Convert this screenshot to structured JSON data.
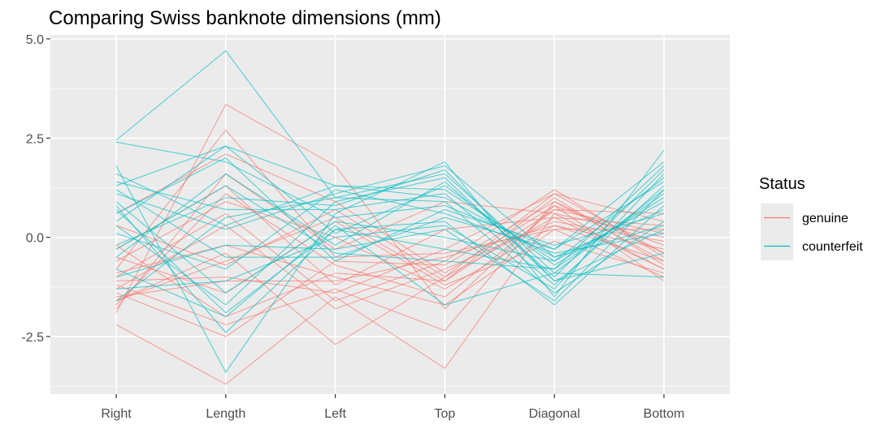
{
  "chart_data": {
    "type": "line",
    "subtype": "parallel-coordinates",
    "title": "Comparing Swiss banknote dimensions (mm)",
    "xlabel": "",
    "ylabel": "",
    "categories": [
      "Right",
      "Length",
      "Left",
      "Top",
      "Diagonal",
      "Bottom"
    ],
    "y_ticks": [
      -2.5,
      0.0,
      2.5,
      5.0
    ],
    "y_tick_labels": [
      "-2.5",
      "0.0",
      "2.5",
      "5.0"
    ],
    "ylim": [
      -3.95,
      5.1
    ],
    "grid": true,
    "legend": {
      "title": "Status",
      "position": "right"
    },
    "colors": {
      "panel_bg": "#ebebeb",
      "grid": "#ffffff",
      "genuine": "#F8766D",
      "counterfeit": "#00BFC4"
    },
    "series": [
      {
        "name": "genuine",
        "color": "#F8766D",
        "lines": [
          [
            -2.2,
            -3.7,
            -1.5,
            -3.3,
            0.6,
            -0.8
          ],
          [
            -1.9,
            3.35,
            1.8,
            -1.8,
            0.8,
            -1.1
          ],
          [
            -1.6,
            -0.4,
            -2.7,
            -1.0,
            1.1,
            -0.4
          ],
          [
            -1.2,
            -2.2,
            -1.3,
            -2.35,
            0.9,
            -0.6
          ],
          [
            -0.8,
            2.7,
            -0.5,
            -0.4,
            0.2,
            0.2
          ],
          [
            -1.5,
            -1.1,
            -1.1,
            -0.5,
            0.3,
            -0.3
          ],
          [
            0.3,
            -0.7,
            0.7,
            -1.0,
            0.5,
            0.3
          ],
          [
            -1.0,
            0.6,
            -1.6,
            -0.6,
            1.2,
            -0.5
          ],
          [
            -1.7,
            1.1,
            -0.7,
            -1.5,
            0.7,
            0.6
          ],
          [
            -0.5,
            -1.4,
            0.4,
            -1.2,
            -0.1,
            -0.9
          ],
          [
            -1.3,
            0.3,
            -1.8,
            -0.8,
            0.4,
            -0.1
          ],
          [
            -0.2,
            -2.0,
            -0.9,
            -1.1,
            1.0,
            -0.7
          ],
          [
            -1.8,
            1.6,
            -0.3,
            0.9,
            0.6,
            0.0
          ],
          [
            -0.9,
            -0.2,
            -1.0,
            -1.7,
            0.2,
            -1.0
          ],
          [
            0.6,
            2.1,
            0.9,
            -0.9,
            0.8,
            -0.2
          ],
          [
            -1.1,
            -1.0,
            -1.4,
            -0.3,
            1.1,
            0.4
          ],
          [
            -0.6,
            0.9,
            0.0,
            -1.3,
            0.3,
            -0.6
          ],
          [
            -1.4,
            -2.5,
            -0.6,
            -0.7,
            0.9,
            -0.4
          ],
          [
            -0.3,
            1.3,
            -1.2,
            0.2,
            0.5,
            -0.8
          ],
          [
            -1.6,
            -0.6,
            0.5,
            -1.1,
            0.7,
            0.1
          ]
        ]
      },
      {
        "name": "counterfeit",
        "color": "#00BFC4",
        "lines": [
          [
            2.45,
            4.7,
            1.0,
            1.6,
            -0.9,
            1.2
          ],
          [
            1.8,
            -3.4,
            0.6,
            1.9,
            -1.5,
            2.2
          ],
          [
            1.3,
            2.3,
            1.3,
            1.2,
            -0.6,
            1.5
          ],
          [
            0.8,
            -2.4,
            0.2,
            0.4,
            -1.7,
            0.8
          ],
          [
            2.4,
            1.9,
            0.5,
            0.8,
            -0.3,
            1.9
          ],
          [
            0.3,
            -1.7,
            0.9,
            1.5,
            -1.1,
            -0.4
          ],
          [
            -0.3,
            1.3,
            -0.4,
            -0.6,
            -0.8,
            1.1
          ],
          [
            1.1,
            0.2,
            1.1,
            1.8,
            -0.5,
            0.3
          ],
          [
            -1.3,
            -1.1,
            0.0,
            0.3,
            -1.3,
            1.6
          ],
          [
            0.6,
            2.0,
            -0.6,
            0.7,
            -0.2,
            0.6
          ],
          [
            -0.8,
            -2.0,
            0.3,
            -1.7,
            -0.9,
            -1.0
          ],
          [
            1.4,
            0.7,
            0.7,
            1.1,
            -1.2,
            1.3
          ],
          [
            0.1,
            -0.8,
            1.2,
            0.6,
            -0.4,
            0.1
          ],
          [
            -0.5,
            1.6,
            -0.2,
            1.4,
            -1.0,
            1.7
          ],
          [
            0.9,
            -1.4,
            0.4,
            0.0,
            -0.6,
            0.9
          ],
          [
            -1.6,
            0.5,
            1.0,
            0.9,
            -1.4,
            0.4
          ],
          [
            0.4,
            2.3,
            0.1,
            1.3,
            -0.7,
            1.0
          ],
          [
            1.2,
            -0.5,
            -0.5,
            0.5,
            -0.3,
            1.4
          ],
          [
            -0.2,
            1.0,
            0.8,
            1.7,
            -1.1,
            0.2
          ],
          [
            0.7,
            -1.9,
            0.2,
            -0.3,
            -0.8,
            1.8
          ],
          [
            1.6,
            0.3,
            1.3,
            1.0,
            -0.5,
            0.7
          ],
          [
            -1.0,
            -0.2,
            -0.3,
            0.2,
            -1.6,
            1.2
          ]
        ]
      }
    ]
  }
}
